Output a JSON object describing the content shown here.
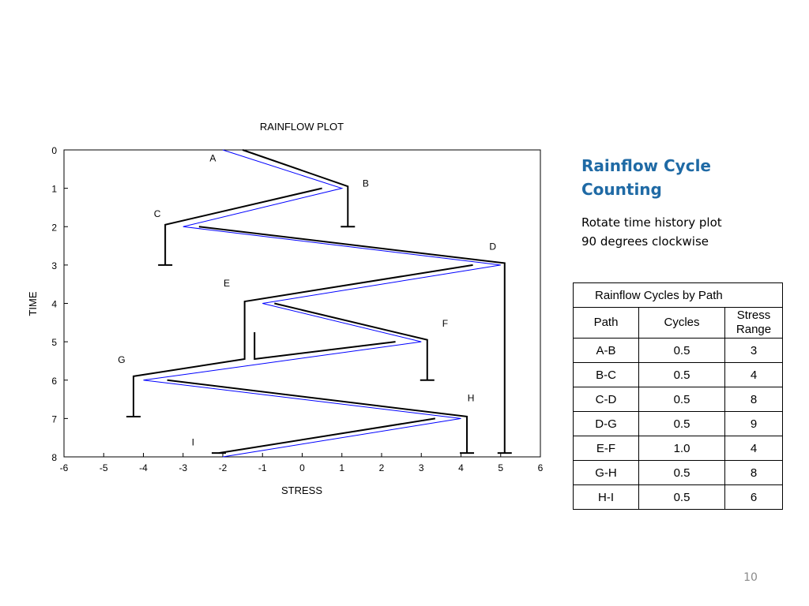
{
  "slide": {
    "title_line1": "Rainflow Cycle",
    "title_line2": "Counting",
    "body_line1": "Rotate time history plot",
    "body_line2": "90 degrees clockwise",
    "page_number": "10"
  },
  "chart_data": {
    "type": "line",
    "title": "RAINFLOW PLOT",
    "xlabel": "STRESS",
    "ylabel": "TIME",
    "xlim": [
      -6,
      6
    ],
    "ylim": [
      0,
      8
    ],
    "y_inverted": true,
    "xticks": [
      -6,
      -5,
      -4,
      -3,
      -2,
      -1,
      0,
      1,
      2,
      3,
      4,
      5,
      6
    ],
    "yticks": [
      0,
      1,
      2,
      3,
      4,
      5,
      6,
      7,
      8
    ],
    "grid": false,
    "colors": {
      "history": "#0000ff",
      "rainflow": "#000000"
    },
    "time_history": {
      "x": [
        -2,
        1,
        -3,
        5,
        -1,
        3,
        -4,
        4,
        -2
      ],
      "y": [
        0,
        1,
        2,
        3,
        4,
        5,
        6,
        7,
        8
      ]
    },
    "rainflow_paths": [
      [
        [
          -1.5,
          0
        ],
        [
          1.15,
          0.95
        ],
        [
          1.15,
          2.0
        ]
      ],
      [
        [
          0.5,
          1.0
        ],
        [
          -3.45,
          1.95
        ],
        [
          -3.45,
          3.0
        ]
      ],
      [
        [
          -2.6,
          2.0
        ],
        [
          5.1,
          2.95
        ],
        [
          5.1,
          7.9
        ]
      ],
      [
        [
          4.3,
          3.0
        ],
        [
          -1.45,
          3.95
        ],
        [
          -1.45,
          5.45
        ],
        [
          -4.25,
          5.9
        ],
        [
          -4.25,
          6.95
        ]
      ],
      [
        [
          -0.7,
          4.0
        ],
        [
          3.15,
          4.95
        ],
        [
          3.15,
          6.0
        ]
      ],
      [
        [
          2.35,
          5.0
        ],
        [
          -1.2,
          5.45
        ],
        [
          -1.2,
          4.75
        ]
      ],
      [
        [
          -3.4,
          6.0
        ],
        [
          4.15,
          6.95
        ],
        [
          4.15,
          7.9
        ]
      ],
      [
        [
          3.35,
          7.0
        ],
        [
          -2.1,
          7.9
        ]
      ]
    ],
    "path_end_ticks": [
      [
        1.15,
        2.0
      ],
      [
        -3.45,
        3.0
      ],
      [
        5.1,
        7.9
      ],
      [
        -4.25,
        6.95
      ],
      [
        3.15,
        6.0
      ],
      [
        4.15,
        7.9
      ],
      [
        -2.1,
        7.9
      ]
    ],
    "point_labels": [
      {
        "text": "A",
        "x": -2.25,
        "y": 0.2
      },
      {
        "text": "B",
        "x": 1.6,
        "y": 0.85
      },
      {
        "text": "C",
        "x": -3.65,
        "y": 1.65
      },
      {
        "text": "D",
        "x": 4.8,
        "y": 2.5
      },
      {
        "text": "E",
        "x": -1.9,
        "y": 3.45
      },
      {
        "text": "F",
        "x": 3.6,
        "y": 4.5
      },
      {
        "text": "G",
        "x": -4.55,
        "y": 5.45
      },
      {
        "text": "H",
        "x": 4.25,
        "y": 6.45
      },
      {
        "text": "I",
        "x": -2.75,
        "y": 7.6
      }
    ]
  },
  "table": {
    "caption": "Rainflow Cycles by Path",
    "headers": {
      "path": "Path",
      "cycles": "Cycles",
      "stress1": "Stress",
      "stress2": "Range"
    },
    "rows": [
      {
        "path": "A-B",
        "cycles": "0.5",
        "range": "3"
      },
      {
        "path": "B-C",
        "cycles": "0.5",
        "range": "4"
      },
      {
        "path": "C-D",
        "cycles": "0.5",
        "range": "8"
      },
      {
        "path": "D-G",
        "cycles": "0.5",
        "range": "9"
      },
      {
        "path": "E-F",
        "cycles": "1.0",
        "range": "4"
      },
      {
        "path": "G-H",
        "cycles": "0.5",
        "range": "8"
      },
      {
        "path": "H-I",
        "cycles": "0.5",
        "range": "6"
      }
    ]
  }
}
